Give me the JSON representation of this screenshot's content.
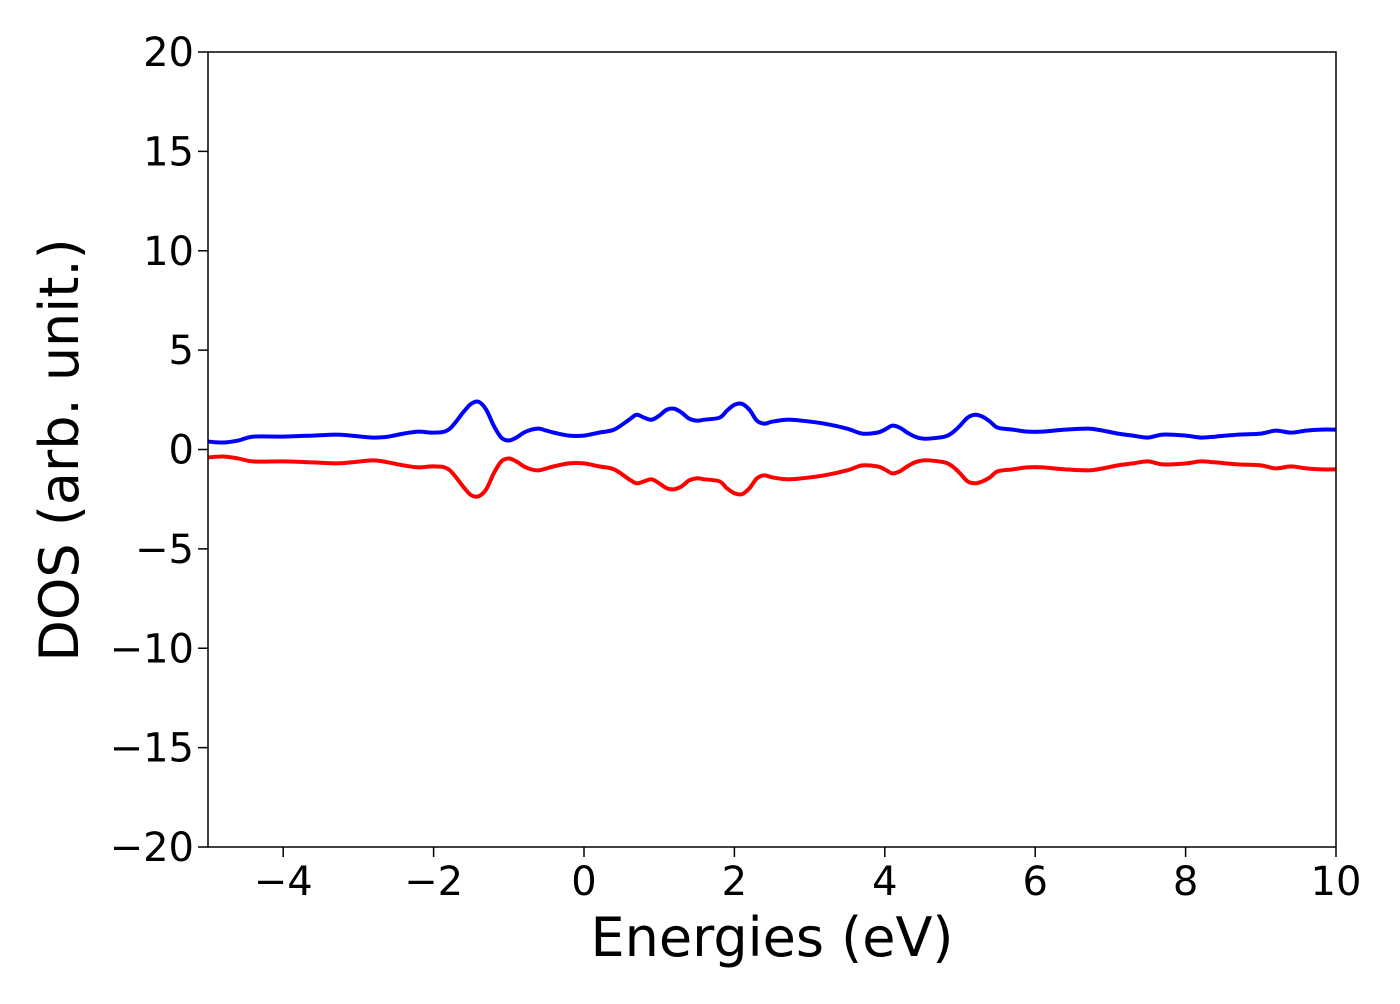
{
  "chart_data": {
    "type": "line",
    "title": "",
    "xlabel": "Energies (eV)",
    "ylabel": "DOS (arb. unit.)",
    "xlim": [
      -5,
      10
    ],
    "ylim": [
      -20,
      20
    ],
    "xticks": [
      -4,
      -2,
      0,
      2,
      4,
      6,
      8,
      10
    ],
    "xtick_labels": [
      "−4",
      "−2",
      "0",
      "2",
      "4",
      "6",
      "8",
      "10"
    ],
    "yticks": [
      20,
      15,
      10,
      5,
      0,
      -5,
      -10,
      -15,
      -20
    ],
    "ytick_labels": [
      "20",
      "15",
      "10",
      "5",
      "0",
      "−5",
      "−10",
      "−15",
      "−20"
    ],
    "grid": false,
    "legend": "none",
    "series": [
      {
        "color": "#0000ff",
        "x": [
          -5.0,
          -4.8,
          -4.6,
          -4.4,
          -4.0,
          -3.6,
          -3.3,
          -3.1,
          -2.8,
          -2.6,
          -2.4,
          -2.2,
          -2.0,
          -1.8,
          -1.6,
          -1.5,
          -1.4,
          -1.3,
          -1.2,
          -1.1,
          -1.0,
          -0.9,
          -0.8,
          -0.7,
          -0.6,
          -0.5,
          -0.4,
          -0.2,
          0.0,
          0.2,
          0.4,
          0.6,
          0.7,
          0.8,
          0.9,
          1.0,
          1.1,
          1.2,
          1.3,
          1.4,
          1.5,
          1.6,
          1.8,
          1.9,
          2.0,
          2.1,
          2.2,
          2.3,
          2.4,
          2.5,
          2.7,
          2.9,
          3.2,
          3.5,
          3.7,
          3.9,
          4.0,
          4.1,
          4.2,
          4.3,
          4.4,
          4.5,
          4.6,
          4.8,
          4.9,
          5.0,
          5.1,
          5.2,
          5.3,
          5.4,
          5.5,
          5.7,
          5.9,
          6.1,
          6.4,
          6.7,
          6.9,
          7.1,
          7.3,
          7.5,
          7.7,
          8.0,
          8.2,
          8.4,
          8.7,
          9.0,
          9.2,
          9.4,
          9.6,
          9.8,
          10.0
        ],
        "y": [
          0.4,
          0.35,
          0.45,
          0.65,
          0.65,
          0.7,
          0.75,
          0.7,
          0.6,
          0.65,
          0.8,
          0.9,
          0.85,
          1.0,
          1.9,
          2.3,
          2.4,
          2.0,
          1.2,
          0.6,
          0.45,
          0.6,
          0.85,
          1.0,
          1.05,
          0.95,
          0.85,
          0.7,
          0.7,
          0.85,
          1.0,
          1.5,
          1.75,
          1.6,
          1.5,
          1.7,
          2.0,
          2.05,
          1.85,
          1.55,
          1.45,
          1.5,
          1.6,
          1.95,
          2.25,
          2.3,
          2.0,
          1.45,
          1.3,
          1.4,
          1.5,
          1.45,
          1.3,
          1.05,
          0.8,
          0.85,
          1.0,
          1.2,
          1.1,
          0.85,
          0.65,
          0.55,
          0.55,
          0.65,
          0.85,
          1.2,
          1.6,
          1.75,
          1.65,
          1.4,
          1.1,
          1.0,
          0.9,
          0.9,
          1.0,
          1.05,
          0.95,
          0.8,
          0.7,
          0.6,
          0.75,
          0.7,
          0.6,
          0.65,
          0.75,
          0.8,
          0.95,
          0.85,
          0.95,
          1.0,
          1.0
        ]
      },
      {
        "color": "#ff0000",
        "x": [
          -5.0,
          -4.8,
          -4.6,
          -4.4,
          -4.0,
          -3.6,
          -3.3,
          -3.1,
          -2.8,
          -2.6,
          -2.4,
          -2.2,
          -2.0,
          -1.8,
          -1.6,
          -1.5,
          -1.4,
          -1.3,
          -1.2,
          -1.1,
          -1.0,
          -0.9,
          -0.8,
          -0.7,
          -0.6,
          -0.5,
          -0.4,
          -0.2,
          0.0,
          0.2,
          0.4,
          0.6,
          0.7,
          0.8,
          0.9,
          1.0,
          1.1,
          1.2,
          1.3,
          1.4,
          1.5,
          1.6,
          1.8,
          1.9,
          2.0,
          2.1,
          2.2,
          2.3,
          2.4,
          2.5,
          2.7,
          2.9,
          3.2,
          3.5,
          3.7,
          3.9,
          4.0,
          4.1,
          4.2,
          4.3,
          4.4,
          4.5,
          4.6,
          4.8,
          4.9,
          5.0,
          5.1,
          5.2,
          5.3,
          5.4,
          5.5,
          5.7,
          5.9,
          6.1,
          6.4,
          6.7,
          6.9,
          7.1,
          7.3,
          7.5,
          7.7,
          8.0,
          8.2,
          8.4,
          8.7,
          9.0,
          9.2,
          9.4,
          9.6,
          9.8,
          10.0
        ],
        "y": [
          -0.4,
          -0.35,
          -0.45,
          -0.6,
          -0.6,
          -0.65,
          -0.7,
          -0.65,
          -0.55,
          -0.65,
          -0.8,
          -0.9,
          -0.85,
          -1.0,
          -1.9,
          -2.3,
          -2.35,
          -2.0,
          -1.2,
          -0.6,
          -0.45,
          -0.6,
          -0.85,
          -1.0,
          -1.05,
          -0.95,
          -0.85,
          -0.7,
          -0.7,
          -0.85,
          -1.0,
          -1.5,
          -1.7,
          -1.6,
          -1.5,
          -1.7,
          -1.95,
          -2.0,
          -1.85,
          -1.55,
          -1.45,
          -1.5,
          -1.6,
          -1.95,
          -2.2,
          -2.25,
          -1.95,
          -1.45,
          -1.3,
          -1.4,
          -1.5,
          -1.45,
          -1.3,
          -1.05,
          -0.8,
          -0.85,
          -1.0,
          -1.2,
          -1.1,
          -0.85,
          -0.65,
          -0.55,
          -0.55,
          -0.65,
          -0.85,
          -1.2,
          -1.6,
          -1.7,
          -1.6,
          -1.4,
          -1.1,
          -1.0,
          -0.9,
          -0.9,
          -1.0,
          -1.05,
          -0.95,
          -0.8,
          -0.7,
          -0.6,
          -0.75,
          -0.7,
          -0.6,
          -0.65,
          -0.75,
          -0.8,
          -0.95,
          -0.85,
          -0.95,
          -1.0,
          -1.0
        ]
      }
    ]
  }
}
